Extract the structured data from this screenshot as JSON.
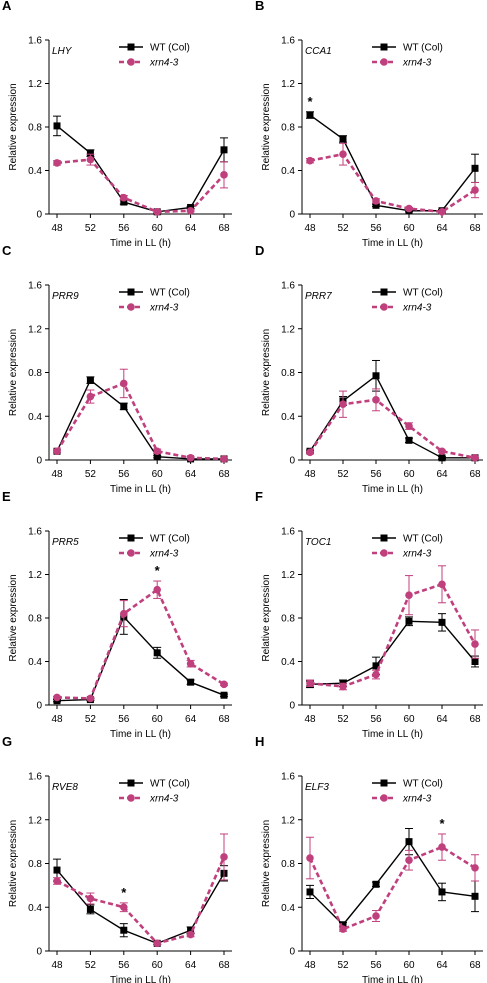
{
  "figure": {
    "series_names": [
      "WT (Col)",
      "xrn4-3"
    ],
    "colors": {
      "wt": "#000000",
      "xrn4": "#c0407e"
    },
    "xlabel": "Time in LL (h)",
    "ylabel": "Relative expression"
  },
  "chart_data": [
    {
      "panel": "A",
      "gene": "LHY",
      "type": "line",
      "x": [
        48,
        52,
        56,
        60,
        64,
        68
      ],
      "xlabel": "Time in LL (h)",
      "ylabel": "Relative expression",
      "ylim": [
        0,
        1.6
      ],
      "yticks": [
        0,
        0.4,
        0.8,
        1.2,
        1.6
      ],
      "series": [
        {
          "name": "WT (Col)",
          "values": [
            0.81,
            0.56,
            0.11,
            0.02,
            0.06,
            0.59
          ],
          "errors": [
            0.09,
            0.03,
            0.02,
            0.01,
            0.01,
            0.11
          ]
        },
        {
          "name": "xrn4-3",
          "values": [
            0.47,
            0.5,
            0.15,
            0.02,
            0.03,
            0.36
          ],
          "errors": [
            0.02,
            0.05,
            0.02,
            0.01,
            0.01,
            0.12
          ]
        }
      ],
      "significance": []
    },
    {
      "panel": "B",
      "gene": "CCA1",
      "type": "line",
      "x": [
        48,
        52,
        56,
        60,
        64,
        68
      ],
      "xlabel": "Time in LL (h)",
      "ylabel": "Relative expression",
      "ylim": [
        0,
        1.6
      ],
      "yticks": [
        0,
        0.4,
        0.8,
        1.2,
        1.6
      ],
      "series": [
        {
          "name": "WT (Col)",
          "values": [
            0.91,
            0.69,
            0.08,
            0.03,
            0.03,
            0.42
          ],
          "errors": [
            0.03,
            0.03,
            0.01,
            0.01,
            0.01,
            0.13
          ]
        },
        {
          "name": "xrn4-3",
          "values": [
            0.49,
            0.55,
            0.12,
            0.05,
            0.02,
            0.22
          ],
          "errors": [
            0.02,
            0.1,
            0.02,
            0.01,
            0.01,
            0.07
          ]
        }
      ],
      "significance": [
        48
      ]
    },
    {
      "panel": "C",
      "gene": "PRR9",
      "type": "line",
      "x": [
        48,
        52,
        56,
        60,
        64,
        68
      ],
      "xlabel": "Time in LL (h)",
      "ylabel": "Relative expression",
      "ylim": [
        0,
        1.6
      ],
      "yticks": [
        0,
        0.4,
        0.8,
        1.2,
        1.6
      ],
      "series": [
        {
          "name": "WT (Col)",
          "values": [
            0.08,
            0.73,
            0.49,
            0.03,
            0.01,
            0.01
          ],
          "errors": [
            0.01,
            0.03,
            0.03,
            0.01,
            0.005,
            0.005
          ]
        },
        {
          "name": "xrn4-3",
          "values": [
            0.08,
            0.58,
            0.7,
            0.08,
            0.02,
            0.01
          ],
          "errors": [
            0.01,
            0.06,
            0.13,
            0.02,
            0.01,
            0.005
          ]
        }
      ],
      "significance": []
    },
    {
      "panel": "D",
      "gene": "PRR7",
      "type": "line",
      "x": [
        48,
        52,
        56,
        60,
        64,
        68
      ],
      "xlabel": "Time in LL (h)",
      "ylabel": "Relative expression",
      "ylim": [
        0,
        1.6
      ],
      "yticks": [
        0,
        0.4,
        0.8,
        1.2,
        1.6
      ],
      "series": [
        {
          "name": "WT (Col)",
          "values": [
            0.08,
            0.54,
            0.77,
            0.18,
            0.02,
            0.02
          ],
          "errors": [
            0.01,
            0.04,
            0.14,
            0.02,
            0.01,
            0.005
          ]
        },
        {
          "name": "xrn4-3",
          "values": [
            0.07,
            0.51,
            0.55,
            0.31,
            0.08,
            0.02
          ],
          "errors": [
            0.01,
            0.12,
            0.1,
            0.03,
            0.01,
            0.005
          ]
        }
      ],
      "significance": []
    },
    {
      "panel": "E",
      "gene": "PRR5",
      "type": "line",
      "x": [
        48,
        52,
        56,
        60,
        64,
        68
      ],
      "xlabel": "Time in LL (h)",
      "ylabel": "Relative expression",
      "ylim": [
        0,
        1.6
      ],
      "yticks": [
        0,
        0.4,
        0.8,
        1.2,
        1.6
      ],
      "series": [
        {
          "name": "WT (Col)",
          "values": [
            0.04,
            0.05,
            0.81,
            0.48,
            0.21,
            0.09
          ],
          "errors": [
            0.01,
            0.01,
            0.16,
            0.05,
            0.02,
            0.01
          ]
        },
        {
          "name": "xrn4-3",
          "values": [
            0.07,
            0.06,
            0.84,
            1.06,
            0.38,
            0.19
          ],
          "errors": [
            0.01,
            0.01,
            0.12,
            0.08,
            0.03,
            0.01
          ]
        }
      ],
      "significance": [
        60
      ]
    },
    {
      "panel": "F",
      "gene": "TOC1",
      "type": "line",
      "x": [
        48,
        52,
        56,
        60,
        64,
        68
      ],
      "xlabel": "Time in LL (h)",
      "ylabel": "Relative expression",
      "ylim": [
        0,
        1.6
      ],
      "yticks": [
        0,
        0.4,
        0.8,
        1.2,
        1.6
      ],
      "series": [
        {
          "name": "WT (Col)",
          "values": [
            0.19,
            0.2,
            0.36,
            0.77,
            0.76,
            0.4
          ],
          "errors": [
            0.03,
            0.03,
            0.08,
            0.04,
            0.08,
            0.05
          ]
        },
        {
          "name": "xrn4-3",
          "values": [
            0.2,
            0.17,
            0.28,
            1.01,
            1.11,
            0.56
          ],
          "errors": [
            0.03,
            0.03,
            0.04,
            0.18,
            0.17,
            0.13
          ]
        }
      ],
      "significance": []
    },
    {
      "panel": "G",
      "gene": "RVE8",
      "type": "line",
      "x": [
        48,
        52,
        56,
        60,
        64,
        68
      ],
      "xlabel": "Time in LL (h)",
      "ylabel": "Relative expression",
      "ylim": [
        0,
        1.6
      ],
      "yticks": [
        0,
        0.4,
        0.8,
        1.2,
        1.6
      ],
      "series": [
        {
          "name": "WT (Col)",
          "values": [
            0.74,
            0.38,
            0.19,
            0.07,
            0.19,
            0.71
          ],
          "errors": [
            0.1,
            0.04,
            0.06,
            0.01,
            0.03,
            0.07
          ]
        },
        {
          "name": "xrn4-3",
          "values": [
            0.64,
            0.48,
            0.4,
            0.07,
            0.15,
            0.86
          ],
          "errors": [
            0.03,
            0.05,
            0.04,
            0.01,
            0.02,
            0.21
          ]
        }
      ],
      "significance": [
        56
      ]
    },
    {
      "panel": "H",
      "gene": "ELF3",
      "type": "line",
      "x": [
        48,
        52,
        56,
        60,
        64,
        68
      ],
      "xlabel": "Time in LL (h)",
      "ylabel": "Relative expression",
      "ylim": [
        0,
        1.6
      ],
      "yticks": [
        0,
        0.4,
        0.8,
        1.2,
        1.6
      ],
      "series": [
        {
          "name": "WT (Col)",
          "values": [
            0.54,
            0.24,
            0.61,
            1.0,
            0.54,
            0.5
          ],
          "errors": [
            0.06,
            0.02,
            0.02,
            0.12,
            0.08,
            0.14
          ]
        },
        {
          "name": "xrn4-3",
          "values": [
            0.85,
            0.2,
            0.32,
            0.83,
            0.95,
            0.76
          ],
          "errors": [
            0.19,
            0.02,
            0.05,
            0.09,
            0.12,
            0.12
          ]
        }
      ],
      "significance": [
        64
      ]
    }
  ]
}
